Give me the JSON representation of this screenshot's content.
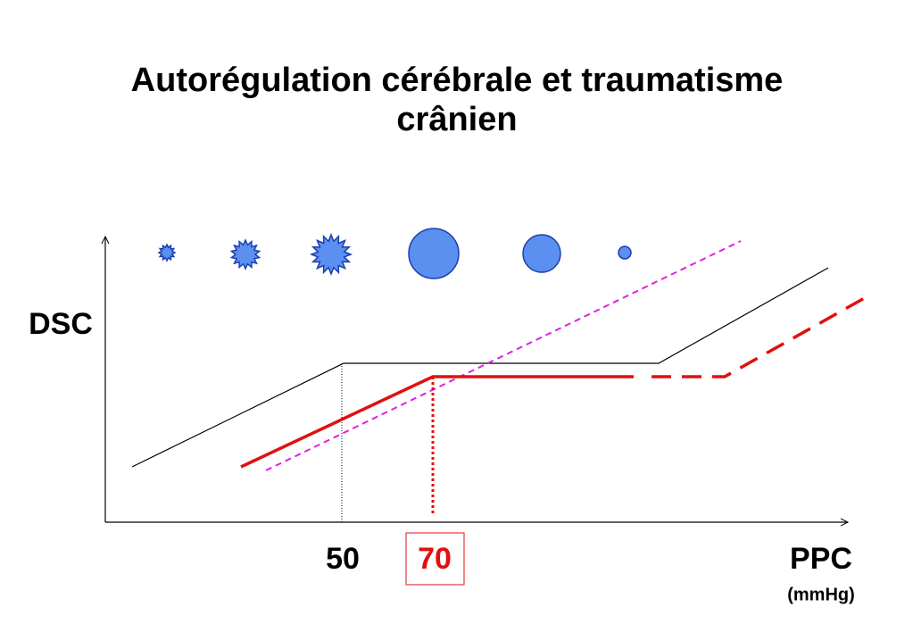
{
  "title_lines": [
    "Autorégulation cérébrale et traumatisme",
    "crânien"
  ],
  "y_axis_label": "DSC",
  "x_axis_label": "PPC",
  "x_axis_unit": "(mmHg)",
  "markers": [
    "50",
    "70"
  ]
}
